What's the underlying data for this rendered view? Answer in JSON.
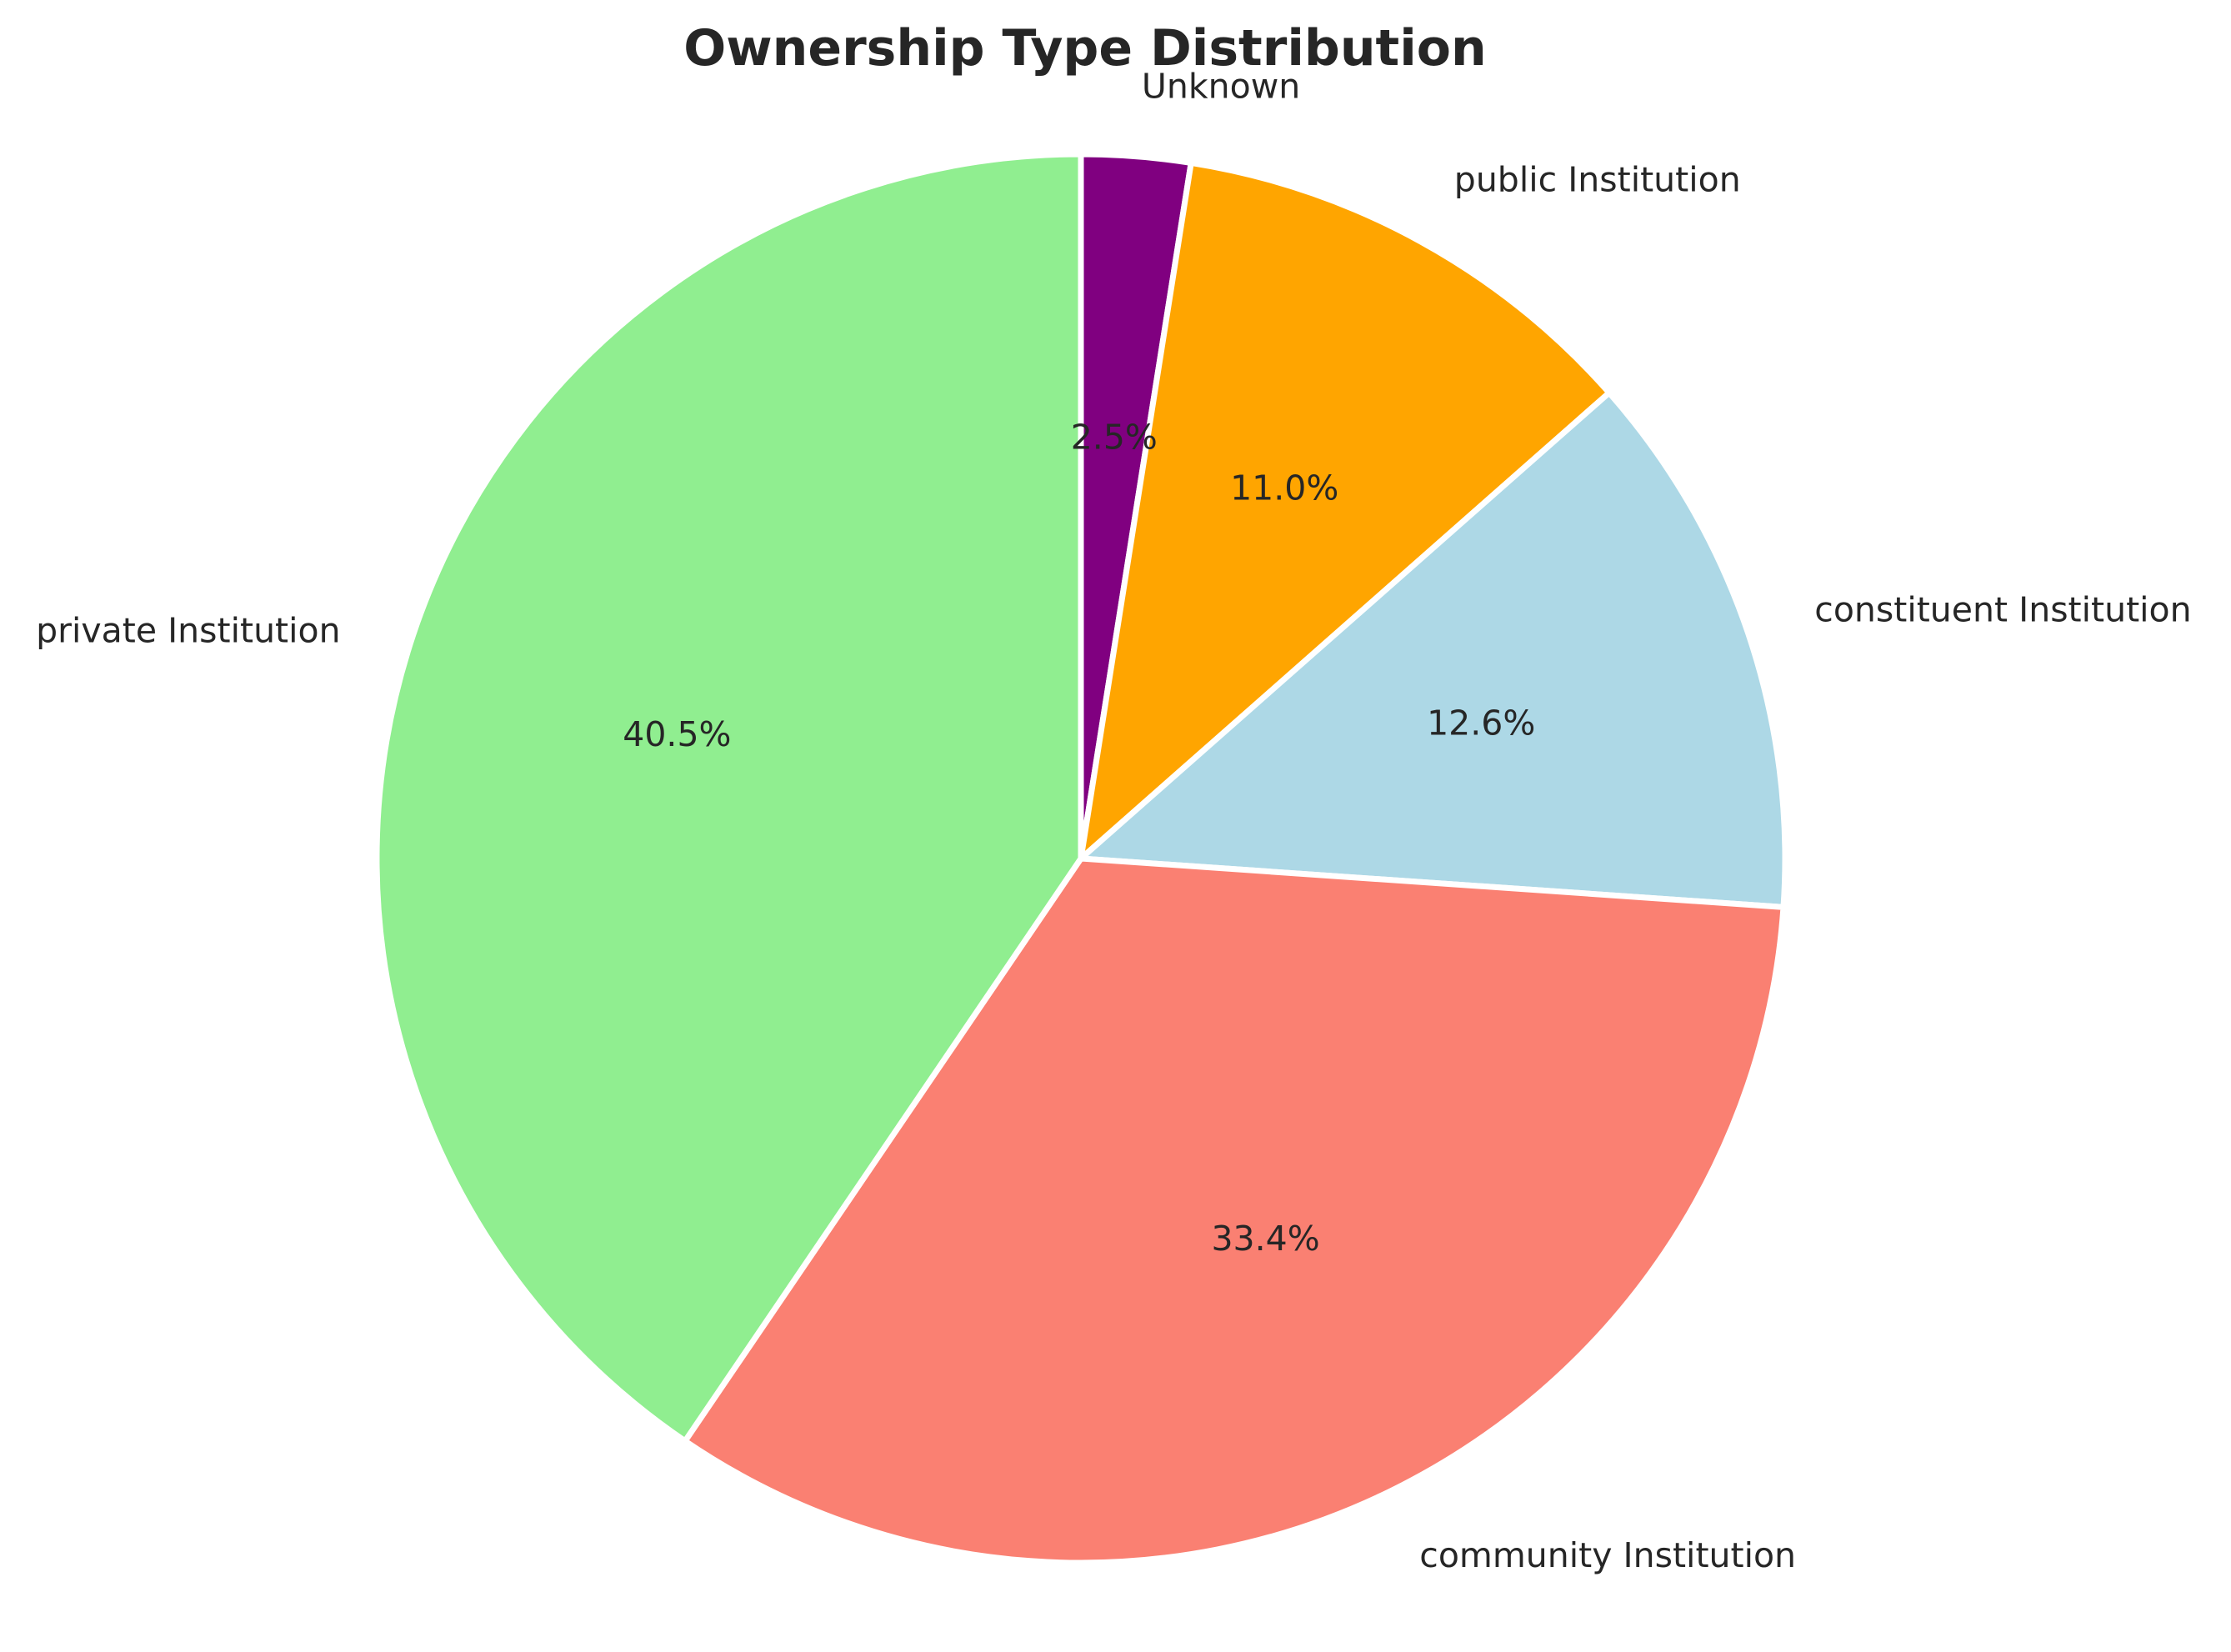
{
  "chart_data": {
    "type": "pie",
    "title": "Ownership Type Distribution",
    "start_angle_deg": 90,
    "direction": "clockwise",
    "slices": [
      {
        "label": "Unknown",
        "value": 2.5,
        "pct_label": "2.5%",
        "color": "#800080"
      },
      {
        "label": "public Institution",
        "value": 11.0,
        "pct_label": "11.0%",
        "color": "#FFA500"
      },
      {
        "label": "constituent Institution",
        "value": 12.6,
        "pct_label": "12.6%",
        "color": "#ADD8E6"
      },
      {
        "label": "community Institution",
        "value": 33.4,
        "pct_label": "33.4%",
        "color": "#FA8072"
      },
      {
        "label": "private Institution",
        "value": 40.5,
        "pct_label": "40.5%",
        "color": "#90EE90"
      }
    ]
  }
}
